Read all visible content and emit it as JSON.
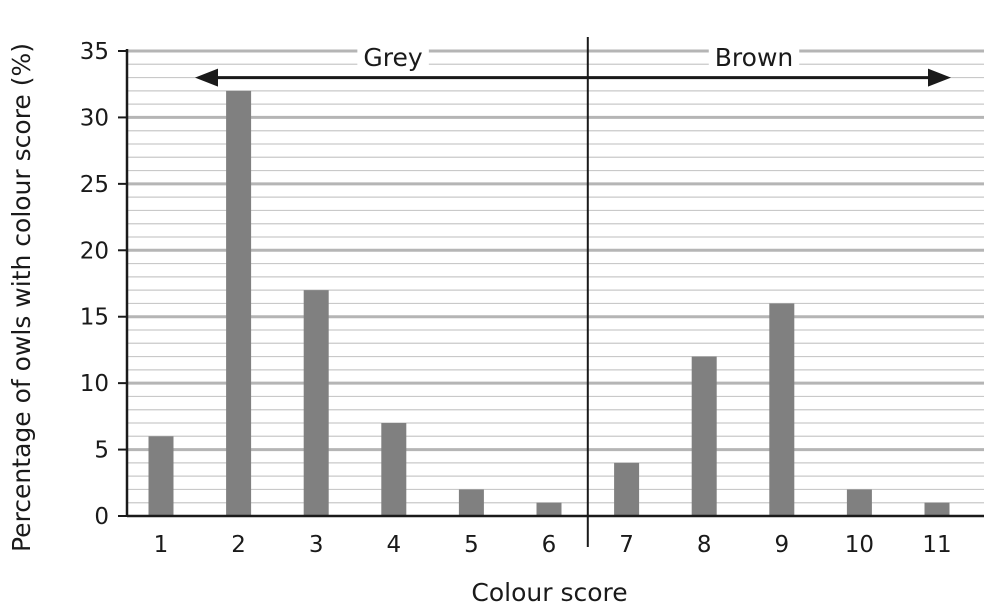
{
  "chart_data": {
    "type": "bar",
    "categories": [
      "1",
      "2",
      "3",
      "4",
      "5",
      "6",
      "7",
      "8",
      "9",
      "10",
      "11"
    ],
    "values": [
      6,
      32,
      17,
      7,
      2,
      1,
      4,
      12,
      16,
      2,
      1
    ],
    "xlabel": "Colour score",
    "ylabel": "Percentage of owls with colour score (%)",
    "ylim": [
      0,
      35
    ],
    "yticks": [
      0,
      5,
      10,
      15,
      20,
      25,
      30,
      35
    ],
    "minor_gridline_step": 1,
    "grid": true,
    "bar_color": "#808080",
    "divider_after_category": "6",
    "annotations": [
      {
        "label": "Grey",
        "arrow": "left",
        "group_categories": [
          "1",
          "2",
          "3",
          "4",
          "5",
          "6"
        ]
      },
      {
        "label": "Brown",
        "arrow": "right",
        "group_categories": [
          "7",
          "8",
          "9",
          "10",
          "11"
        ]
      }
    ]
  }
}
